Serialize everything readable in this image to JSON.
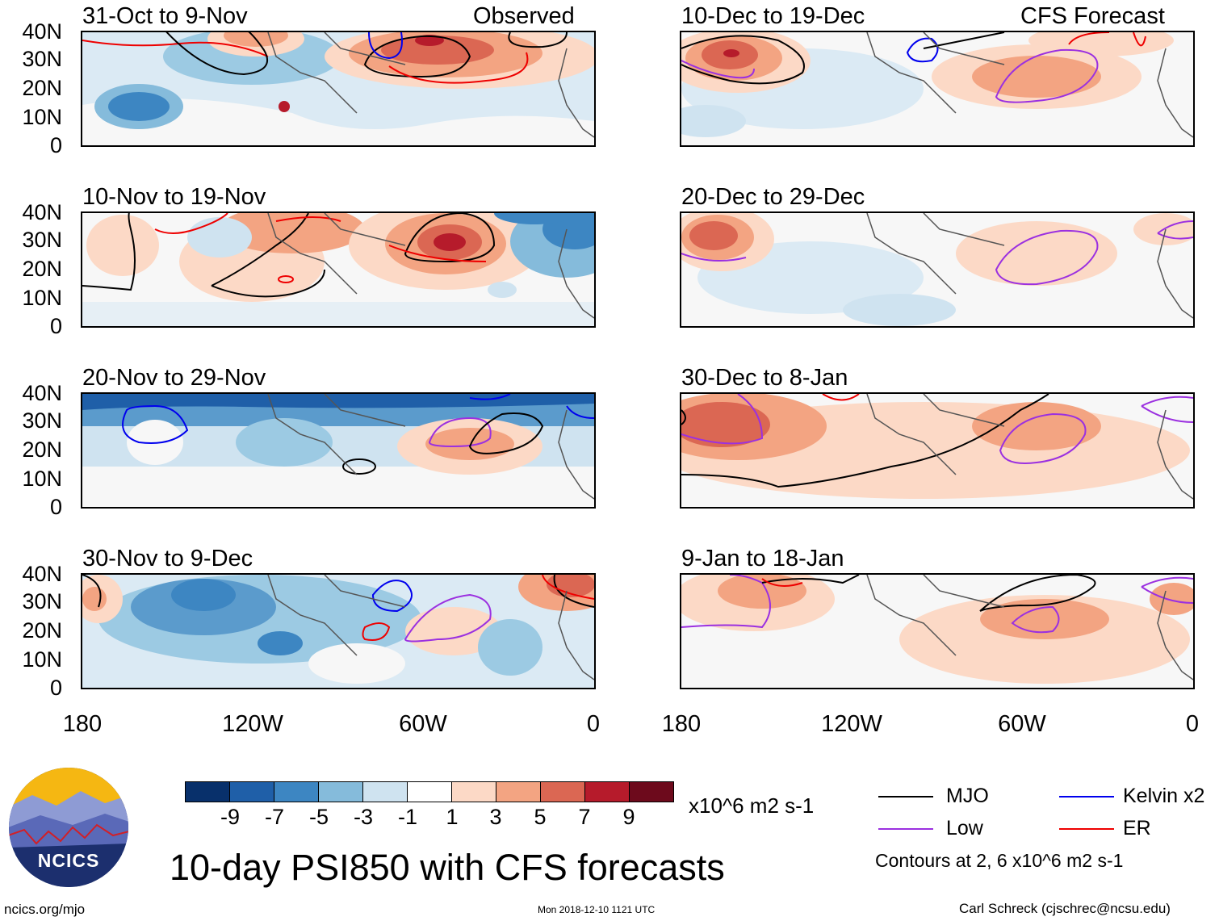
{
  "figure": {
    "main_title": "10-day PSI850 with CFS forecasts",
    "observed_label": "Observed",
    "forecast_label": "CFS Forecast",
    "y_ticks": [
      "40N",
      "30N",
      "20N",
      "10N",
      "0"
    ],
    "x_ticks": [
      "180",
      "120W",
      "60W",
      "0"
    ]
  },
  "panels": {
    "left": [
      {
        "title": "31-Oct to 9-Nov"
      },
      {
        "title": "10-Nov to 19-Nov"
      },
      {
        "title": "20-Nov to 29-Nov"
      },
      {
        "title": "30-Nov to 9-Dec"
      }
    ],
    "right": [
      {
        "title": "10-Dec to 19-Dec"
      },
      {
        "title": "20-Dec to 29-Dec"
      },
      {
        "title": "30-Dec to 8-Jan"
      },
      {
        "title": "9-Jan to 18-Jan"
      }
    ]
  },
  "colorbar": {
    "labels": [
      "-9",
      "-7",
      "-5",
      "-3",
      "-1",
      "1",
      "3",
      "5",
      "7",
      "9"
    ],
    "colors": [
      "#08306b",
      "#1f5fa8",
      "#3d86c2",
      "#85bbdb",
      "#cfe3f0",
      "#ffffff",
      "#fcd9c6",
      "#f3a482",
      "#db6753",
      "#b61b2b",
      "#6d0a1c"
    ],
    "units": "x10^6 m2 s-1"
  },
  "legend": {
    "mjo": {
      "label": "MJO",
      "color": "#000000"
    },
    "kelvin": {
      "label": "Kelvin x2",
      "color": "#0000ee"
    },
    "low": {
      "label": "Low",
      "color": "#9b30e0"
    },
    "er": {
      "label": "ER",
      "color": "#ee0000"
    },
    "note": "Contours at 2, 6 x10^6 m2 s-1"
  },
  "logo": {
    "text": "NCICS"
  },
  "footer": {
    "url": "ncics.org/mjo",
    "timestamp": "Mon 2018-12-10 1121 UTC",
    "author": "Carl Schreck (cjschrec@ncsu.edu)"
  }
}
